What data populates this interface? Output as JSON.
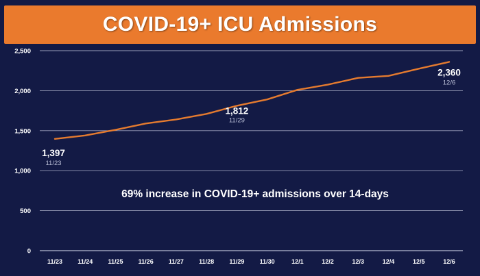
{
  "title": "COVID-19+ ICU Admissions",
  "colors": {
    "background": "#131a45",
    "title_bar": "#ea7a2d",
    "line": "#e57b2f",
    "grid": "#c8cbe0",
    "text": "#ffffff"
  },
  "chart_data": {
    "type": "line",
    "title": "COVID-19+ ICU Admissions",
    "xlabel": "",
    "ylabel": "",
    "categories": [
      "11/23",
      "11/24",
      "11/25",
      "11/26",
      "11/27",
      "11/28",
      "11/29",
      "11/30",
      "12/1",
      "12/2",
      "12/3",
      "12/4",
      "12/5",
      "12/6"
    ],
    "series": [
      {
        "values": [
          1397,
          1440,
          1510,
          1590,
          1640,
          1710,
          1812,
          1890,
          2010,
          2075,
          2160,
          2185,
          2275,
          2360
        ]
      }
    ],
    "ylim": [
      0,
      2500
    ],
    "yticks": [
      0,
      500,
      1000,
      1500,
      2000,
      2500
    ],
    "ytick_labels": [
      "0",
      "500",
      "1,000",
      "1,500",
      "2,000",
      "2,500"
    ],
    "grid": true,
    "legend": "none",
    "annotations": [
      {
        "value_label": "1,397",
        "date_label": "11/23",
        "category": "11/23"
      },
      {
        "value_label": "1,812",
        "date_label": "11/29",
        "category": "11/29"
      },
      {
        "value_label": "2,360",
        "date_label": "12/6",
        "category": "12/6"
      }
    ],
    "note": "69% increase in COVID-19+ admissions over 14-days"
  }
}
